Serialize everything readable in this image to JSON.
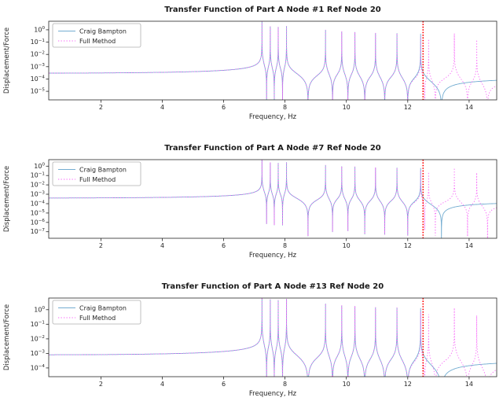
{
  "page": {
    "background": "#ffffff"
  },
  "chart_data": [
    {
      "type": "line",
      "title": "Transfer Function of Part A Node #1 Ref Node 20",
      "xlabel": "Frequency, Hz",
      "ylabel": "Displacement/Force",
      "xlim": [
        0.3,
        14.9
      ],
      "xticks": [
        2,
        4,
        6,
        8,
        10,
        12,
        14
      ],
      "ytick_exponents": [
        0,
        -1,
        -2,
        -3,
        -4,
        -5
      ],
      "ylim_log": [
        -5.7,
        0.7
      ],
      "grid": false,
      "legend_position": "upper left",
      "cutoff_line": {
        "x": 12.5,
        "color": "#ff0000",
        "style": "dotted"
      },
      "series": [
        {
          "name": "Craig Bampton",
          "color": "#74add1",
          "style": "solid",
          "model": {
            "baseline": 0.0003,
            "zeta": 5e-06,
            "poles": [
              7.25,
              7.52,
              7.78,
              8.05,
              9.32,
              9.85,
              10.28,
              10.95,
              11.65,
              12.42
            ],
            "zeros": [
              7.4,
              7.65,
              7.92,
              8.75,
              9.55,
              10.05,
              10.6,
              11.25,
              12.0,
              13.1
            ]
          }
        },
        {
          "name": "Full Method",
          "color": "#f762f7",
          "style": "dotted",
          "model": {
            "baseline": 0.0003,
            "zeta": 5e-06,
            "poles": [
              7.25,
              7.52,
              7.78,
              8.05,
              9.32,
              9.85,
              10.28,
              10.95,
              11.65,
              12.42,
              12.68,
              13.52,
              14.25
            ],
            "zeros": [
              7.4,
              7.65,
              7.92,
              8.75,
              9.55,
              10.05,
              10.6,
              11.25,
              12.0,
              12.55,
              12.9,
              13.95,
              14.6
            ]
          }
        }
      ]
    },
    {
      "type": "line",
      "title": "Transfer Function of Part A Node #7 Ref Node 20",
      "xlabel": "Frequency, Hz",
      "ylabel": "Displacement/Force",
      "xlim": [
        0.3,
        14.9
      ],
      "xticks": [
        2,
        4,
        6,
        8,
        10,
        12,
        14
      ],
      "ytick_exponents": [
        0,
        -1,
        -2,
        -3,
        -4,
        -5,
        -6,
        -7
      ],
      "ylim_log": [
        -7.7,
        0.7
      ],
      "grid": false,
      "legend_position": "upper left",
      "cutoff_line": {
        "x": 12.5,
        "color": "#ff0000",
        "style": "dotted"
      },
      "series": [
        {
          "name": "Craig Bampton",
          "color": "#74add1",
          "style": "solid",
          "model": {
            "baseline": 0.0004,
            "zeta": 5e-06,
            "poles": [
              7.25,
              7.52,
              7.78,
              8.05,
              9.32,
              9.85,
              10.28,
              10.95,
              11.65,
              12.42
            ],
            "zeros": [
              7.4,
              7.65,
              7.92,
              8.75,
              9.55,
              10.05,
              10.6,
              11.25,
              12.0,
              13.1
            ]
          }
        },
        {
          "name": "Full Method",
          "color": "#f762f7",
          "style": "dotted",
          "model": {
            "baseline": 0.0004,
            "zeta": 5e-06,
            "poles": [
              7.25,
              7.52,
              7.78,
              8.05,
              9.32,
              9.85,
              10.28,
              10.95,
              11.65,
              12.42,
              12.68,
              13.52,
              14.25
            ],
            "zeros": [
              7.4,
              7.65,
              7.92,
              8.75,
              9.55,
              10.05,
              10.6,
              11.25,
              12.0,
              12.55,
              12.9,
              13.95,
              14.6
            ]
          }
        }
      ]
    },
    {
      "type": "line",
      "title": "Transfer Function of Part A Node #13 Ref Node 20",
      "xlabel": "Frequency, Hz",
      "ylabel": "Displacement/Force",
      "xlim": [
        0.3,
        14.9
      ],
      "xticks": [
        2,
        4,
        6,
        8,
        10,
        12,
        14
      ],
      "ytick_exponents": [
        0,
        -1,
        -2,
        -3,
        -4
      ],
      "ylim_log": [
        -4.6,
        0.8
      ],
      "grid": false,
      "legend_position": "upper left",
      "cutoff_line": {
        "x": 12.5,
        "color": "#ff0000",
        "style": "dotted"
      },
      "series": [
        {
          "name": "Craig Bampton",
          "color": "#74add1",
          "style": "solid",
          "model": {
            "baseline": 0.0008,
            "zeta": 5e-06,
            "poles": [
              7.25,
              7.52,
              7.78,
              8.05,
              9.32,
              9.85,
              10.28,
              10.95,
              11.65,
              12.42
            ],
            "zeros": [
              7.4,
              7.65,
              7.92,
              8.75,
              9.55,
              10.05,
              10.6,
              11.25,
              12.0,
              13.1
            ]
          }
        },
        {
          "name": "Full Method",
          "color": "#f762f7",
          "style": "dotted",
          "model": {
            "baseline": 0.0008,
            "zeta": 5e-06,
            "poles": [
              7.25,
              7.52,
              7.78,
              8.05,
              9.32,
              9.85,
              10.28,
              10.95,
              11.65,
              12.42,
              12.68,
              13.52,
              14.25
            ],
            "zeros": [
              7.4,
              7.65,
              7.92,
              8.75,
              9.55,
              10.05,
              10.6,
              11.25,
              12.0,
              12.55,
              12.9,
              13.95,
              14.6
            ]
          }
        }
      ]
    }
  ]
}
